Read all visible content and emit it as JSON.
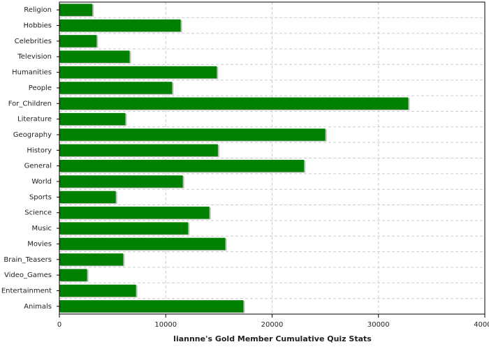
{
  "chart_data": {
    "type": "barh",
    "xlabel": "liannne's Gold Member Cumulative Quiz Stats",
    "categories": [
      "Religion",
      "Hobbies",
      "Celebrities",
      "Television",
      "Humanities",
      "People",
      "For_Children",
      "Literature",
      "Geography",
      "History",
      "General",
      "World",
      "Sports",
      "Science",
      "Music",
      "Movies",
      "Brain_Teasers",
      "Video_Games",
      "Entertainment",
      "Animals"
    ],
    "values": [
      3100,
      11400,
      3500,
      6600,
      14800,
      10600,
      32800,
      6200,
      25000,
      14900,
      23000,
      11600,
      5300,
      14100,
      12100,
      15600,
      6000,
      2600,
      7200,
      17300
    ],
    "color": "#008000",
    "xlim": [
      0,
      40000
    ],
    "xticks": [
      0,
      10000,
      20000,
      30000,
      40000
    ],
    "grid": true
  }
}
